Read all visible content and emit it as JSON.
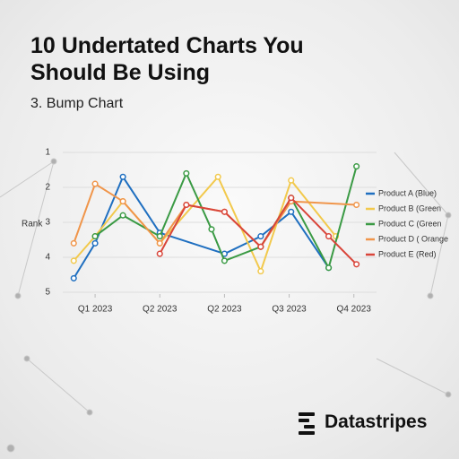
{
  "brand": "Datastripes",
  "chart_data": {
    "type": "line",
    "title": "10 Undertated Charts You Should Be Using",
    "subtitle": "3. Bump Chart",
    "y_label": "Rank",
    "ylim": [
      5,
      1
    ],
    "yticks": [
      1,
      2,
      3,
      4,
      5
    ],
    "xlim": [
      0.5,
      5.35
    ],
    "xticks": [
      {
        "value": 1,
        "label": "Q1 2023"
      },
      {
        "value": 2,
        "label": "Q2 2023"
      },
      {
        "value": 3,
        "label": "Q2 2023"
      },
      {
        "value": 4,
        "label": "Q3 2023"
      },
      {
        "value": 5,
        "label": "Q4 2023"
      }
    ],
    "grid": true,
    "legend": "right",
    "series": [
      {
        "name": "Product A (Blue)",
        "color": "#1f6fc0",
        "x": [
          0.67,
          1,
          1.43,
          2,
          3,
          3.56,
          4.03,
          4.61
        ],
        "values": [
          4.6,
          3.6,
          1.7,
          3.3,
          3.9,
          3.4,
          2.7,
          4.3
        ]
      },
      {
        "name": "Product B (Green",
        "color": "#f2c94c",
        "x": [
          0.67,
          1,
          1.43,
          2,
          2.9,
          3.56,
          4.03,
          4.72
        ],
        "values": [
          4.1,
          3.4,
          2.4,
          3.6,
          1.7,
          4.4,
          1.8,
          3.4
        ]
      },
      {
        "name": "Product C (Green",
        "color": "#3a9a44",
        "x": [
          1,
          1.43,
          2,
          2.41,
          2.8,
          3,
          3.56,
          4.03,
          4.61,
          5.04
        ],
        "values": [
          3.4,
          2.8,
          3.4,
          1.6,
          3.2,
          4.1,
          3.7,
          2.3,
          4.3,
          1.4
        ]
      },
      {
        "name": "Product D ( Orange",
        "color": "#f0954a",
        "x": [
          0.67,
          1,
          1.43,
          2,
          2.41,
          3,
          3.56,
          4.03,
          5.04
        ],
        "values": [
          3.6,
          1.9,
          2.4,
          3.6,
          2.5,
          2.7,
          3.7,
          2.4,
          2.5
        ]
      },
      {
        "name": "Product E (Red)",
        "color": "#d9453a",
        "x": [
          2,
          2.41,
          3,
          3.56,
          4.03,
          4.61,
          5.04
        ],
        "values": [
          3.9,
          2.5,
          2.7,
          3.7,
          2.3,
          3.4,
          4.2
        ]
      }
    ]
  }
}
